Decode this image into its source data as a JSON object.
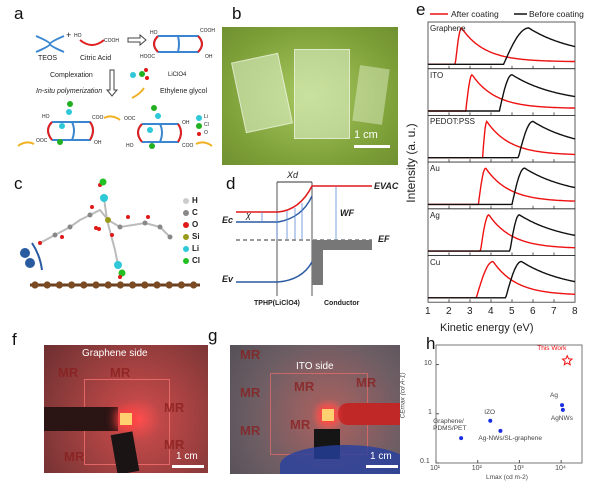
{
  "panels": {
    "a": "a",
    "b": "b",
    "c": "c",
    "d": "d",
    "e": "e",
    "f": "f",
    "g": "g",
    "h": "h"
  },
  "a": {
    "teos": "TEOS",
    "citric": "Citric Acid",
    "ho": "HO",
    "cooh": "COOH",
    "hooc": "HOOC",
    "oh": "OH",
    "complexation": "Complexation",
    "insitu": "In-situ polymerization",
    "liclo4": "LiClO4",
    "eg": "Ethylene glycol",
    "coo": "COO",
    "ooc": "OOC",
    "legend": [
      "Li",
      "Cl",
      "O"
    ],
    "colors": {
      "li": "#2ec8d8",
      "cl": "#22b022",
      "o": "#e01818"
    }
  },
  "b": {
    "scale": "1 cm"
  },
  "c": {
    "legend": [
      "H",
      "C",
      "O",
      "Si",
      "Li",
      "Cl"
    ],
    "colors": [
      "#cccccc",
      "#888888",
      "#e01818",
      "#9a9a1a",
      "#2ec8d8",
      "#22c022"
    ]
  },
  "d": {
    "evac": "EVAC",
    "wf": "WF",
    "ef": "EF",
    "ec": "Ec",
    "ev": "Ev",
    "chi": "χ",
    "xd": "Xd",
    "left": "TPHP(LiClO4)",
    "right": "Conductor"
  },
  "chart_data": [
    {
      "panel": "e",
      "type": "line",
      "xlabel": "Kinetic energy (eV)",
      "ylabel": "Intensity (a. u.)",
      "xlim": [
        1,
        8
      ],
      "xticks": [
        "1",
        "2",
        "3",
        "4",
        "5",
        "6",
        "7",
        "8"
      ],
      "legend": [
        "After coating",
        "Before coating"
      ],
      "legend_position": "top",
      "colors": {
        "after": "#ee1111",
        "before": "#111111"
      },
      "subplots": [
        {
          "name": "Graphene",
          "after": {
            "onset": 2.3,
            "peak": 2.6
          },
          "before": {
            "onset": 4.6,
            "peak": 5.8
          }
        },
        {
          "name": "ITO",
          "after": {
            "onset": 2.8,
            "peak": 3.1
          },
          "before": {
            "onset": 4.4,
            "peak": 5.0
          }
        },
        {
          "name": "PEDOT:PSS",
          "after": {
            "onset": 3.6,
            "peak": 3.8
          },
          "before": {
            "onset": 5.3,
            "peak": 6.0
          }
        },
        {
          "name": "Au",
          "after": {
            "onset": 3.4,
            "peak": 3.75
          },
          "before": {
            "onset": 5.0,
            "peak": 5.6
          }
        },
        {
          "name": "Ag",
          "after": {
            "onset": 3.5,
            "peak": 3.9
          },
          "before": {
            "onset": 4.9,
            "peak": 5.35
          }
        },
        {
          "name": "Cu",
          "after": {
            "onset": 3.3,
            "peak": 4.1
          },
          "before": {
            "onset": 4.7,
            "peak": 5.45
          }
        }
      ]
    },
    {
      "panel": "h",
      "type": "scatter",
      "xscale": "log",
      "yscale": "log",
      "xlim": [
        10,
        31623
      ],
      "ylim": [
        0.1,
        25
      ],
      "xlabel": "Lmax (cd m-2)",
      "ylabel": "CEmax (cd A-1)",
      "xticks": [
        "10¹",
        "10²",
        "10³",
        "10⁴"
      ],
      "yticks": [
        "0.1",
        "1",
        "10"
      ],
      "points": [
        {
          "label": "Graphene/ PDMS/PET",
          "x": 40,
          "y": 0.32,
          "color": "#1a2ee0"
        },
        {
          "label": "IZO",
          "x": 200,
          "y": 0.72,
          "color": "#1a2ee0"
        },
        {
          "label": "Ag-NWs/SL-graphene",
          "x": 350,
          "y": 0.45,
          "color": "#1a2ee0"
        },
        {
          "label": "Ag",
          "x": 10500,
          "y": 1.5,
          "color": "#1a2ee0"
        },
        {
          "label": "AgNWs",
          "x": 11000,
          "y": 1.2,
          "color": "#1a2ee0"
        },
        {
          "label": "This Work",
          "x": 14000,
          "y": 12,
          "color": "#ee1111",
          "marker": "star"
        }
      ]
    }
  ],
  "f": {
    "title": "Graphene side",
    "scale": "1 cm",
    "watermark": "MR"
  },
  "g": {
    "title": "ITO side",
    "scale": "1 cm",
    "watermark": "MR"
  }
}
